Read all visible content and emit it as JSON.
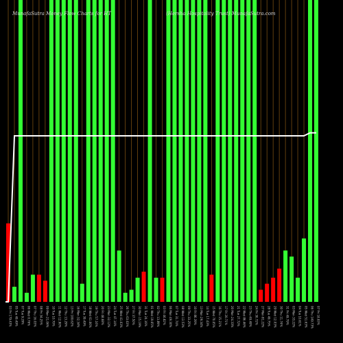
{
  "header": {
    "left": "MunafaSutra  Money Flow  Charts for HT",
    "right": "(Hersha Hospitality Trust) MunafaSutra.com"
  },
  "colors": {
    "background": "#000000",
    "up": "#33ff33",
    "down": "#ff0000",
    "line": "#ffffff",
    "grid": "#8b5a14"
  },
  "chart_data": {
    "type": "bar",
    "title": "MunafaSutra  Money Flow  Charts for HT",
    "subtitle": "(Hersha Hospitality Trust) MunafaSutra.com",
    "ylim": [
      0,
      100
    ],
    "grid": true,
    "categories": [
      "03 Fri 179.43%",
      "05 Tue 49.49%",
      "07 Tue 9.29%",
      "06 Wed 0.76%",
      "07 Thu 16.03%",
      "08 Fri 34.25%",
      "09 Mon 21.06%",
      "10 Tue 10.70%",
      "11 Wed 12.90%",
      "12 Thu 13.29%",
      "13 Fri 100.62%",
      "16 Mon 32.34%",
      "17 Tue 39.49%",
      "18 Wed 61.06%",
      "19 Thu 57.16%",
      "20 Fri 48.68%",
      "23 Mon 32.12%",
      "24 Tue 47.14%",
      "25 Wed 41.03%",
      "26 Thu 63.63%",
      "27 Fri 37.50%",
      "30 Mon 15.19%",
      "31 Tue 24.16%",
      "01 Wed 19.65%",
      "02 Thu 13.89%",
      "03 Fri 46.82%",
      "06 Mon 49.30%",
      "07 Tue 31.74%",
      "08 Wed 13.53%",
      "09 Thu 33.25%",
      "10 Fri 86.39%",
      "13 Mon 29.34%",
      "14 Tue 17.43%",
      "15 Wed 70.05%",
      "16 Thu 15.21%",
      "17 Fri 20.71%",
      "20 Mon 24.33%",
      "21 Tue 27.72%",
      "22 Wed 86.46%",
      "23 Thu 49.49%",
      "24 Fri 30.72%",
      "27 Mon 81.22%",
      "28 Tue 49.75%",
      "29 Wed 12.03%",
      "30 Thu 11.74%",
      "31 Fri 49.79%",
      "03 Mon 33.22%",
      "04 Tue 10.61%",
      "05 Wed 51.63%",
      "06 Thu 149.73%",
      "07 Fri 18.93%"
    ],
    "series": [
      {
        "values": [
          26,
          5,
          100,
          3,
          9,
          9,
          7,
          100,
          100,
          100,
          100,
          100,
          6,
          100,
          100,
          100,
          100,
          100,
          17,
          3,
          4,
          8,
          10,
          100,
          8,
          8,
          100,
          100,
          100,
          100,
          100,
          100,
          100,
          9,
          100,
          100,
          100,
          100,
          100,
          100,
          100,
          4,
          6,
          8,
          11,
          17,
          15,
          8,
          21,
          100,
          100
        ],
        "directions": [
          "down",
          "up",
          "up",
          "up",
          "up",
          "down",
          "down",
          "up",
          "up",
          "up",
          "up",
          "up",
          "up",
          "up",
          "up",
          "up",
          "up",
          "up",
          "up",
          "up",
          "up",
          "up",
          "down",
          "up",
          "up",
          "down",
          "up",
          "up",
          "up",
          "up",
          "up",
          "up",
          "up",
          "down",
          "up",
          "up",
          "up",
          "up",
          "up",
          "up",
          "up",
          "down",
          "down",
          "down",
          "down",
          "up",
          "up",
          "up",
          "up",
          "up",
          "up"
        ]
      },
      {
        "values": [
          0,
          55,
          55,
          55,
          55,
          55,
          55,
          55,
          55,
          55,
          55,
          55,
          55,
          55,
          55,
          55,
          55,
          55,
          55,
          55,
          55,
          55,
          55,
          55,
          55,
          55,
          55,
          55,
          55,
          55,
          55,
          55,
          55,
          55,
          55,
          55,
          55,
          55,
          55,
          55,
          55,
          55,
          55,
          55,
          55,
          55,
          55,
          55,
          55,
          56,
          56
        ]
      }
    ]
  }
}
